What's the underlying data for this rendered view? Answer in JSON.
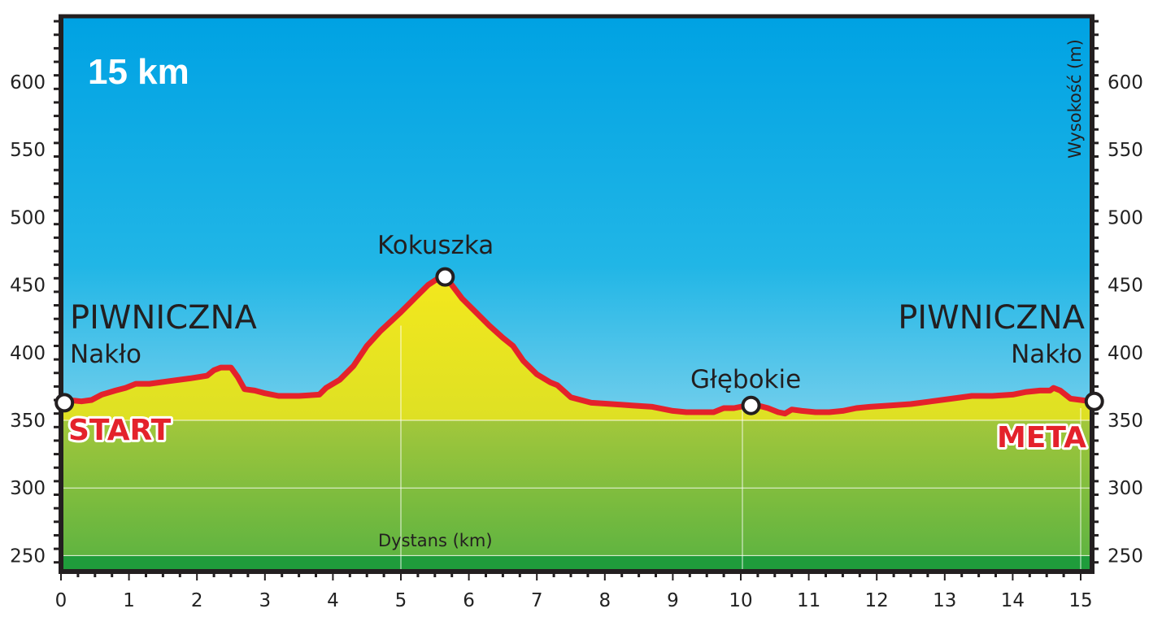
{
  "chart_data": {
    "type": "area",
    "title": "15 km",
    "xlabel": "Dystans (km)",
    "ylabel": "Wysokość (m)",
    "xlim": [
      0,
      15.3
    ],
    "ylim": [
      240,
      650
    ],
    "x_ticks": [
      0,
      1,
      2,
      3,
      4,
      5,
      6,
      7,
      8,
      9,
      10,
      11,
      12,
      13,
      14,
      15
    ],
    "y_ticks": [
      250,
      300,
      350,
      400,
      450,
      500,
      550,
      600
    ],
    "x_tick_labels": [
      "0",
      "1",
      "2",
      "3",
      "4",
      "5",
      "6",
      "7",
      "8",
      "9",
      "10",
      "11",
      "12",
      "13",
      "14",
      "15"
    ],
    "y_tick_labels": [
      "250",
      "300",
      "350",
      "400",
      "450",
      "500",
      "550",
      "600"
    ],
    "grid": true,
    "series": [
      {
        "x": [
          0.0,
          0.1,
          0.3,
          0.45,
          0.6,
          0.8,
          0.95,
          1.1,
          1.3,
          1.6,
          1.9,
          2.15,
          2.25,
          2.35,
          2.5,
          2.6,
          2.7,
          2.85,
          3.0,
          3.2,
          3.5,
          3.8,
          3.9,
          4.1,
          4.3,
          4.5,
          4.7,
          4.85,
          5.0,
          5.2,
          5.4,
          5.55,
          5.65,
          5.75,
          5.9,
          6.1,
          6.3,
          6.5,
          6.65,
          6.8,
          7.0,
          7.2,
          7.3,
          7.5,
          7.8,
          8.1,
          8.4,
          8.7,
          9.0,
          9.2,
          9.4,
          9.6,
          9.75,
          9.9,
          10.1,
          10.25,
          10.4,
          10.55,
          10.65,
          10.75,
          10.9,
          11.1,
          11.3,
          11.5,
          11.7,
          11.9,
          12.2,
          12.5,
          12.8,
          13.1,
          13.4,
          13.7,
          14.0,
          14.2,
          14.4,
          14.5,
          14.55,
          14.6,
          14.7,
          14.85,
          15.0,
          15.15
        ],
        "y": [
          363,
          365,
          364,
          365,
          369,
          372,
          374,
          377,
          377,
          379,
          381,
          383,
          387,
          389,
          389,
          382,
          373,
          372,
          370,
          368,
          368,
          369,
          374,
          380,
          390,
          405,
          416,
          423,
          430,
          440,
          450,
          455,
          456,
          450,
          440,
          430,
          420,
          411,
          405,
          394,
          384,
          378,
          376,
          367,
          363,
          362,
          361,
          360,
          357,
          356,
          356,
          356,
          359,
          359,
          361,
          361,
          359,
          356,
          355,
          358,
          357,
          356,
          356,
          357,
          359,
          360,
          361,
          362,
          364,
          366,
          368,
          368,
          369,
          371,
          372,
          372,
          372,
          374,
          372,
          366,
          365,
          364
        ]
      }
    ],
    "waypoints": [
      {
        "x": 0.05,
        "y": 363
      },
      {
        "x": 5.65,
        "y": 456
      },
      {
        "x": 10.15,
        "y": 361
      },
      {
        "x": 15.2,
        "y": 364
      }
    ],
    "annotations": {
      "left_town": "PIWNICZNA",
      "left_place": "Nakło",
      "start": "START",
      "peak": "Kokuszka",
      "mid": "Głębokie",
      "right_town": "PIWNICZNA",
      "right_place": "Nakło",
      "finish": "META"
    },
    "colors": {
      "line": "#e4222b",
      "sky_top": "#00a2e3",
      "sky_mid": "#21b6e6",
      "sky_bottom": "#c2e6f2",
      "fill_top": "#f3e81d",
      "fill_mid": "#c8d82b",
      "ground_top": "#a2c73b",
      "ground_bottom": "#5ab241",
      "ground_strip": "#1f9c3b",
      "frame": "#231f20"
    }
  }
}
